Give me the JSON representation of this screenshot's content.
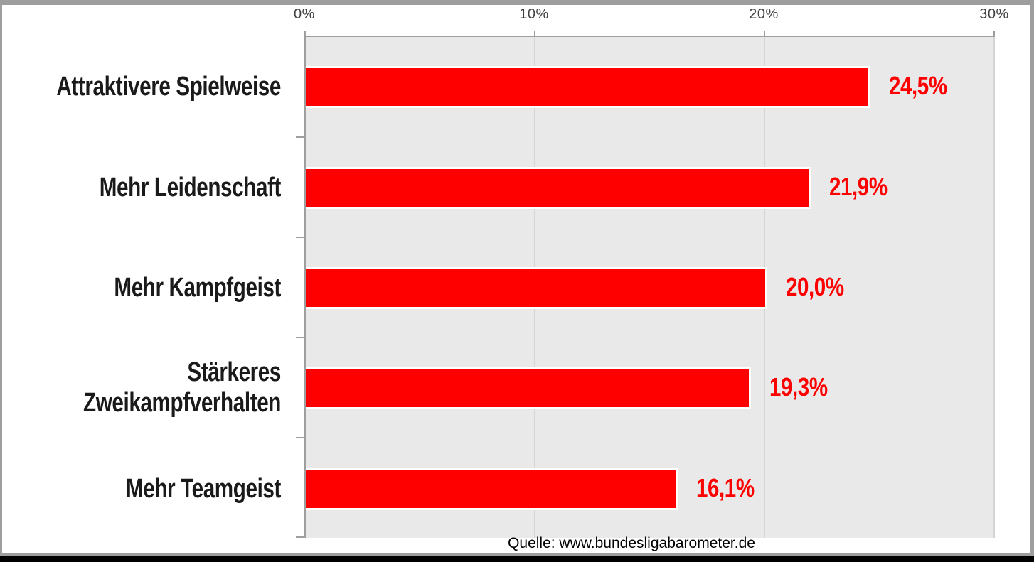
{
  "chart_data": {
    "type": "bar",
    "orientation": "horizontal",
    "title": "",
    "categories": [
      "Attraktivere Spielweise",
      "Mehr Leidenschaft",
      "Mehr Kampfgeist",
      "Stärkeres Zweikampfverhalten",
      "Mehr Teamgeist"
    ],
    "values": [
      24.5,
      21.9,
      20.0,
      19.3,
      16.1
    ],
    "value_labels": [
      "24,5%",
      "21,9%",
      "20,0%",
      "19,3%",
      "16,1%"
    ],
    "xlim": [
      0,
      30
    ],
    "tick_values": [
      0,
      10,
      20,
      30
    ],
    "tick_labels": [
      "0%",
      "10%",
      "20%",
      "30%"
    ],
    "grid": "vertical",
    "legend": false,
    "axis_position": "top",
    "bar_color": "#fe0000",
    "value_label_color": "#fe0000",
    "plot_background": "#e9e9e9",
    "gridline_color": "#d5d5d5",
    "axis_color": "#9e9e9e",
    "source": "Quelle: www.bundesligabarometer.de"
  }
}
